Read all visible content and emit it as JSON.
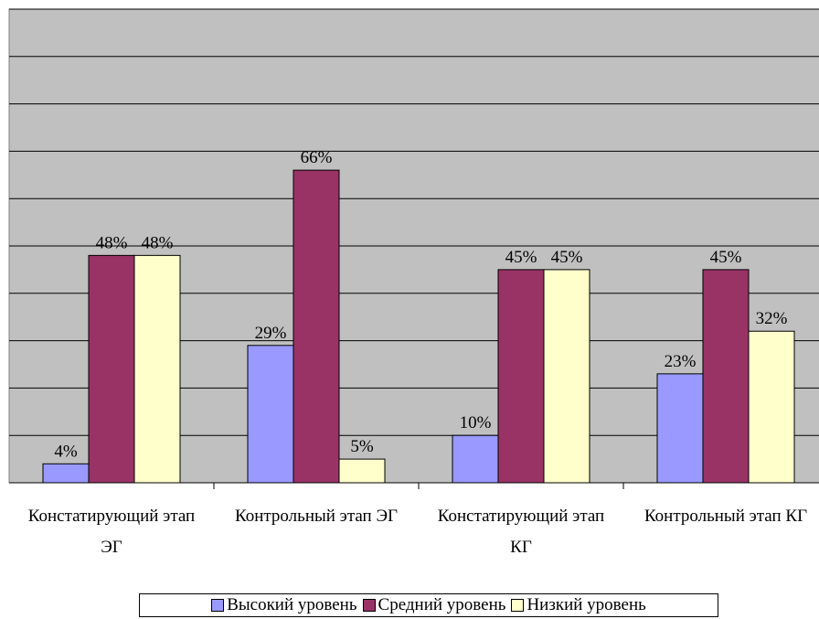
{
  "chart_data": {
    "type": "bar",
    "categories": [
      "Констатирующий этап ЭГ",
      "Контрольный этап ЭГ",
      "Констатирующий этап КГ",
      "Контрольный этап КГ"
    ],
    "series": [
      {
        "name": "Высокий уровень",
        "color": "#9999ff",
        "values": [
          4,
          29,
          10,
          23
        ],
        "value_labels": [
          "4%",
          "29%",
          "10%",
          "23%"
        ]
      },
      {
        "name": "Средний уровень",
        "color": "#993366",
        "values": [
          48,
          66,
          45,
          45
        ],
        "value_labels": [
          "48%",
          "66%",
          "45%",
          "45%"
        ]
      },
      {
        "name": "Низкий уровень",
        "color": "#ffffcc",
        "values": [
          48,
          5,
          45,
          32
        ],
        "value_labels": [
          "48%",
          "5%",
          "45%",
          "32%"
        ]
      }
    ],
    "ylim": [
      0,
      100
    ],
    "yticks": [
      0,
      10,
      20,
      30,
      40,
      50,
      60,
      70,
      80,
      90,
      100
    ],
    "grid": true,
    "legend": "bottom"
  }
}
